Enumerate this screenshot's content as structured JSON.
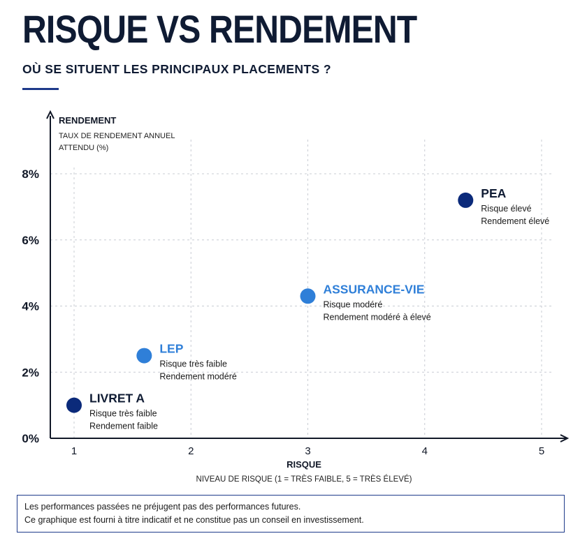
{
  "header": {
    "title": "RISQUE VS RENDEMENT",
    "subtitle": "OÙ SE SITUENT LES PRINCIPAUX PLACEMENTS ?"
  },
  "chart_data": {
    "type": "scatter",
    "ylabel": "RENDEMENT",
    "ylabel_sub": [
      "TAUX DE RENDEMENT ANNUEL",
      "ATTENDU (%)"
    ],
    "xlabel": "RISQUE",
    "xlabel_sub": "NIVEAU DE RISQUE (1 = TRÈS FAIBLE, 5 = TRÈS ÉLEVÉ)",
    "xlim": [
      0.8,
      5.2
    ],
    "ylim": [
      0,
      9
    ],
    "x_ticks": [
      1,
      2,
      3,
      4,
      5
    ],
    "y_ticks": [
      0,
      2,
      4,
      6,
      8
    ],
    "y_tick_labels": [
      "0%",
      "2%",
      "4%",
      "6%",
      "8%"
    ],
    "grid": true,
    "points": [
      {
        "name": "LIVRET A",
        "x": 1.0,
        "y": 1.0,
        "lines": [
          "Risque très faible",
          "Rendement faible"
        ],
        "color": "#0b2a7a",
        "label_color": "#0f1b33"
      },
      {
        "name": "LEP",
        "x": 1.6,
        "y": 2.5,
        "lines": [
          "Risque très faible",
          "Rendement modéré"
        ],
        "color": "#2f7fd8",
        "label_color": "#2f7fd8"
      },
      {
        "name": "ASSURANCE-VIE",
        "x": 3.0,
        "y": 4.3,
        "lines": [
          "Risque modéré",
          "Rendement modéré à élevé"
        ],
        "color": "#2f7fd8",
        "label_color": "#2f7fd8"
      },
      {
        "name": "PEA",
        "x": 4.35,
        "y": 7.2,
        "lines": [
          "Risque élevé",
          "Rendement élevé"
        ],
        "color": "#0b2a7a",
        "label_color": "#0f1b33"
      }
    ]
  },
  "disclaimer": {
    "line1": "Les performances passées ne préjugent pas des performances futures.",
    "line2": "Ce graphique est fourni à titre indicatif et ne constitue pas un conseil en investissement."
  }
}
